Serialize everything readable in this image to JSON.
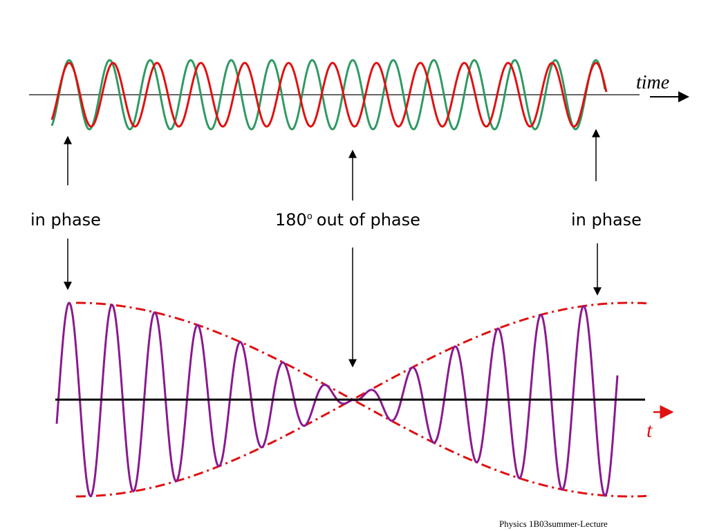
{
  "top_wave": {
    "axis_label": "time"
  },
  "labels": {
    "left": "in phase",
    "middle": {
      "number": "180",
      "superscript": "o",
      "text": "out of phase"
    },
    "right": "in phase"
  },
  "bottom_wave": {
    "axis_label": "t"
  },
  "footer": "Physics 1B03summer-Lecture"
}
